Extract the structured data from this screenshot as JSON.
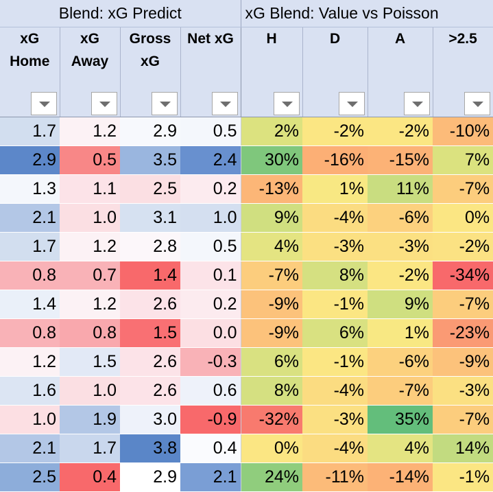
{
  "groups": [
    {
      "label": "Blend: xG Predict",
      "span": 4
    },
    {
      "label": "xG Blend: Value vs Poisson",
      "span": 4
    }
  ],
  "columns": [
    {
      "key": "xg_home",
      "line1": "xG",
      "line2": "Home",
      "line3": ""
    },
    {
      "key": "xg_away",
      "line1": "xG",
      "line2": "Away",
      "line3": ""
    },
    {
      "key": "gross_xg",
      "line1": "Gross",
      "line2": "xG",
      "line3": ""
    },
    {
      "key": "net_xg",
      "line1": "Net xG",
      "line2": "",
      "line3": ""
    },
    {
      "key": "h",
      "line1": "H",
      "line2": "",
      "line3": ""
    },
    {
      "key": "d",
      "line1": "D",
      "line2": "",
      "line3": ""
    },
    {
      "key": "a",
      "line1": "A",
      "line2": "",
      "line3": ""
    },
    {
      "key": "over_2_5",
      "line1": ">2.5",
      "line2": "",
      "line3": ""
    }
  ],
  "rows": [
    {
      "cells": [
        {
          "v": "1.7",
          "bg": "#d2deef"
        },
        {
          "v": "1.2",
          "bg": "#fcf2f5"
        },
        {
          "v": "2.9",
          "bg": "#f7f9fd"
        },
        {
          "v": "0.5",
          "bg": "#f4f7fc"
        },
        {
          "v": "2%",
          "bg": "#dce27f"
        },
        {
          "v": "-2%",
          "bg": "#fbe683"
        },
        {
          "v": "-2%",
          "bg": "#fbe683"
        },
        {
          "v": "-10%",
          "bg": "#fcbb79"
        }
      ]
    },
    {
      "cells": [
        {
          "v": "2.9",
          "bg": "#5c87c9"
        },
        {
          "v": "0.5",
          "bg": "#f88787"
        },
        {
          "v": "3.5",
          "bg": "#9ab6df"
        },
        {
          "v": "2.4",
          "bg": "#6890cf"
        },
        {
          "v": "30%",
          "bg": "#7fc77c"
        },
        {
          "v": "-16%",
          "bg": "#fcaf75"
        },
        {
          "v": "-15%",
          "bg": "#fcb276"
        },
        {
          "v": "7%",
          "bg": "#dbe27f"
        }
      ]
    },
    {
      "cells": [
        {
          "v": "1.3",
          "bg": "#f4f7fc"
        },
        {
          "v": "1.1",
          "bg": "#fce3e8"
        },
        {
          "v": "2.5",
          "bg": "#fbdfe3"
        },
        {
          "v": "0.2",
          "bg": "#fcebef"
        },
        {
          "v": "-13%",
          "bg": "#fcb677"
        },
        {
          "v": "1%",
          "bg": "#f8e883"
        },
        {
          "v": "11%",
          "bg": "#c9dd80"
        },
        {
          "v": "-7%",
          "bg": "#fccd7d"
        }
      ]
    },
    {
      "cells": [
        {
          "v": "2.1",
          "bg": "#b3c7e6"
        },
        {
          "v": "1.0",
          "bg": "#fbdfe3"
        },
        {
          "v": "3.1",
          "bg": "#d6e1f1"
        },
        {
          "v": "1.0",
          "bg": "#d4dff0"
        },
        {
          "v": "9%",
          "bg": "#d0df80"
        },
        {
          "v": "-4%",
          "bg": "#fbdc81"
        },
        {
          "v": "-6%",
          "bg": "#fcd17e"
        },
        {
          "v": "0%",
          "bg": "#fbe683"
        }
      ]
    },
    {
      "cells": [
        {
          "v": "1.7",
          "bg": "#d2deef"
        },
        {
          "v": "1.2",
          "bg": "#fcf2f5"
        },
        {
          "v": "2.8",
          "bg": "#fcf7fa"
        },
        {
          "v": "0.5",
          "bg": "#f4f7fc"
        },
        {
          "v": "4%",
          "bg": "#e4e482"
        },
        {
          "v": "-3%",
          "bg": "#fbe082"
        },
        {
          "v": "-3%",
          "bg": "#fbe082"
        },
        {
          "v": "-2%",
          "bg": "#fbe283"
        }
      ]
    },
    {
      "cells": [
        {
          "v": "0.8",
          "bg": "#f9b2b7"
        },
        {
          "v": "0.7",
          "bg": "#f9b2b7"
        },
        {
          "v": "1.4",
          "bg": "#f8696b"
        },
        {
          "v": "0.1",
          "bg": "#fce3e8"
        },
        {
          "v": "-7%",
          "bg": "#fccd7d"
        },
        {
          "v": "8%",
          "bg": "#d5e081"
        },
        {
          "v": "-2%",
          "bg": "#fbe683"
        },
        {
          "v": "-34%",
          "bg": "#f8696b"
        }
      ]
    },
    {
      "cells": [
        {
          "v": "1.4",
          "bg": "#eaf0f9"
        },
        {
          "v": "1.2",
          "bg": "#fcf2f5"
        },
        {
          "v": "2.6",
          "bg": "#fce3e8"
        },
        {
          "v": "0.2",
          "bg": "#fcebef"
        },
        {
          "v": "-9%",
          "bg": "#fcc27b"
        },
        {
          "v": "-1%",
          "bg": "#fbe683"
        },
        {
          "v": "9%",
          "bg": "#cfdf80"
        },
        {
          "v": "-7%",
          "bg": "#fccd7d"
        }
      ]
    },
    {
      "cells": [
        {
          "v": "0.8",
          "bg": "#f9b2b7"
        },
        {
          "v": "0.8",
          "bg": "#f9a8ad"
        },
        {
          "v": "1.5",
          "bg": "#f97073"
        },
        {
          "v": "0.0",
          "bg": "#fcdfe3"
        },
        {
          "v": "-9%",
          "bg": "#fcc27b"
        },
        {
          "v": "6%",
          "bg": "#d9e181"
        },
        {
          "v": "1%",
          "bg": "#f8e883"
        },
        {
          "v": "-23%",
          "bg": "#fa9a74"
        }
      ]
    },
    {
      "cells": [
        {
          "v": "1.2",
          "bg": "#fcf2f5"
        },
        {
          "v": "1.5",
          "bg": "#e2e9f6"
        },
        {
          "v": "2.6",
          "bg": "#fce3e8"
        },
        {
          "v": "-0.3",
          "bg": "#f9b2b7"
        },
        {
          "v": "6%",
          "bg": "#d9e181"
        },
        {
          "v": "-1%",
          "bg": "#fbe683"
        },
        {
          "v": "-6%",
          "bg": "#fcd17e"
        },
        {
          "v": "-9%",
          "bg": "#fcc27b"
        }
      ]
    },
    {
      "cells": [
        {
          "v": "1.6",
          "bg": "#dce5f3"
        },
        {
          "v": "1.0",
          "bg": "#fbdfe3"
        },
        {
          "v": "2.6",
          "bg": "#fce3e8"
        },
        {
          "v": "0.6",
          "bg": "#eef2fa"
        },
        {
          "v": "8%",
          "bg": "#d5e081"
        },
        {
          "v": "-4%",
          "bg": "#fbdc81"
        },
        {
          "v": "-7%",
          "bg": "#fccd7d"
        },
        {
          "v": "-3%",
          "bg": "#fbe082"
        }
      ]
    },
    {
      "cells": [
        {
          "v": "1.0",
          "bg": "#fcdfe3"
        },
        {
          "v": "1.9",
          "bg": "#b3c7e6"
        },
        {
          "v": "3.0",
          "bg": "#eef2fa"
        },
        {
          "v": "-0.9",
          "bg": "#f8696b"
        },
        {
          "v": "-32%",
          "bg": "#f87a6e"
        },
        {
          "v": "-3%",
          "bg": "#fbe082"
        },
        {
          "v": "35%",
          "bg": "#63be7b"
        },
        {
          "v": "-7%",
          "bg": "#fccd7d"
        }
      ]
    },
    {
      "cells": [
        {
          "v": "2.1",
          "bg": "#b3c7e6"
        },
        {
          "v": "1.7",
          "bg": "#c9d7ed"
        },
        {
          "v": "3.8",
          "bg": "#5a86c8"
        },
        {
          "v": "0.4",
          "bg": "#fafbfe"
        },
        {
          "v": "0%",
          "bg": "#fbe683"
        },
        {
          "v": "-4%",
          "bg": "#fbdc81"
        },
        {
          "v": "4%",
          "bg": "#e4e482"
        },
        {
          "v": "14%",
          "bg": "#c2db80"
        }
      ]
    },
    {
      "cells": [
        {
          "v": "2.5",
          "bg": "#8dadda"
        },
        {
          "v": "0.4",
          "bg": "#f8696b"
        },
        {
          "v": "2.9",
          "bg": "#ffffff"
        },
        {
          "v": "2.1",
          "bg": "#7a9ed5"
        },
        {
          "v": "24%",
          "bg": "#90cd7d"
        },
        {
          "v": "-11%",
          "bg": "#fcbb79"
        },
        {
          "v": "-14%",
          "bg": "#fcb276"
        },
        {
          "v": "-1%",
          "bg": "#fbe683"
        }
      ]
    }
  ]
}
